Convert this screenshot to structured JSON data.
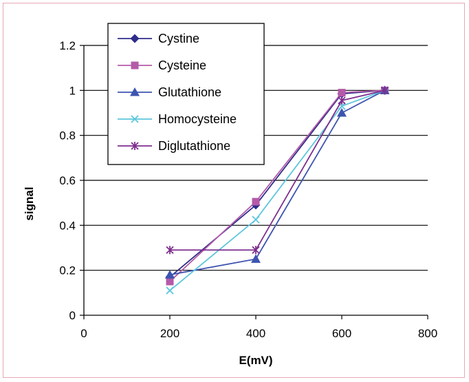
{
  "chart_data": {
    "type": "line",
    "xlabel": "E(mV)",
    "ylabel": "signal",
    "xlim": [
      0,
      800
    ],
    "ylim": [
      0,
      1.2
    ],
    "xticks": [
      "0",
      "200",
      "400",
      "600",
      "800"
    ],
    "yticks": [
      "0",
      "0.2",
      "0.4",
      "0.6",
      "0.8",
      "1",
      "1.2"
    ],
    "grid": "horizontal",
    "legend_position": "top-left",
    "series": [
      {
        "name": "Cystine",
        "marker": "diamond",
        "color": "#2e2d8a",
        "x": [
          200,
          400,
          600,
          700
        ],
        "y": [
          0.17,
          0.49,
          0.985,
          1.0
        ]
      },
      {
        "name": "Cysteine",
        "marker": "square",
        "color": "#b45aa8",
        "x": [
          200,
          400,
          600,
          700
        ],
        "y": [
          0.15,
          0.505,
          0.99,
          1.0
        ]
      },
      {
        "name": "Glutathione",
        "marker": "triangle",
        "color": "#3d54b0",
        "x": [
          200,
          400,
          600,
          700
        ],
        "y": [
          0.18,
          0.25,
          0.9,
          1.0
        ]
      },
      {
        "name": "Homocysteine",
        "marker": "x",
        "color": "#5cc6dc",
        "x": [
          200,
          400,
          600,
          700
        ],
        "y": [
          0.11,
          0.425,
          0.93,
          1.0
        ]
      },
      {
        "name": "Diglutathione",
        "marker": "star",
        "color": "#7d2d8e",
        "x": [
          200,
          400,
          600,
          700
        ],
        "y": [
          0.29,
          0.29,
          0.955,
          1.0
        ]
      }
    ]
  }
}
